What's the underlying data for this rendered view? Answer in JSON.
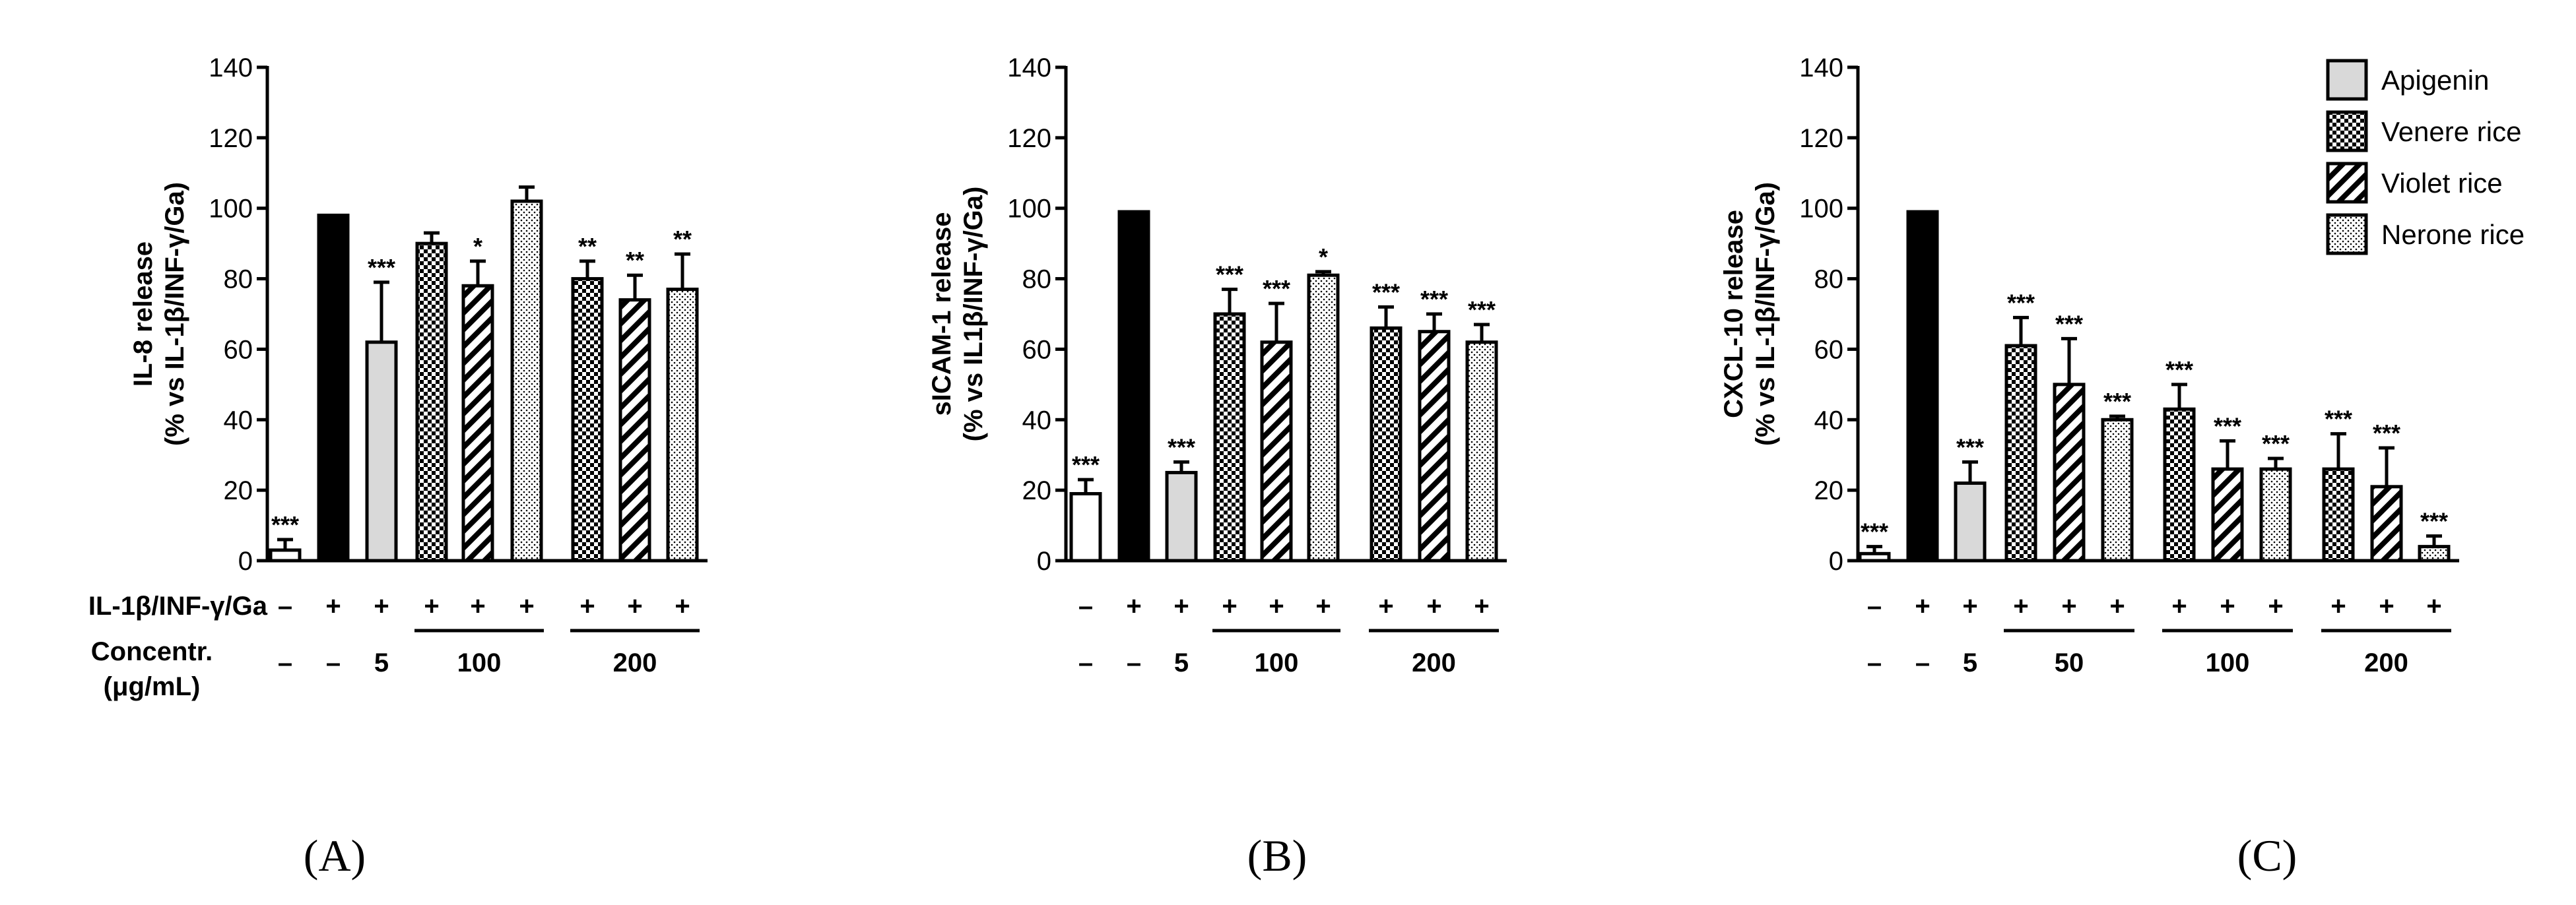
{
  "legend": [
    {
      "key": "apigenin",
      "label": "Apigenin",
      "pattern": "grey"
    },
    {
      "key": "venere",
      "label": "Venere rice",
      "pattern": "checker"
    },
    {
      "key": "violet",
      "label": "Violet rice",
      "pattern": "stripe"
    },
    {
      "key": "nerone",
      "label": "Nerone rice",
      "pattern": "dots"
    }
  ],
  "colors": {
    "bar_stroke": "#000000",
    "grey_fill": "#d9d9d9",
    "stim_fill": "#000000"
  },
  "chart_data": [
    {
      "panel": "(A)",
      "type": "bar",
      "ylabel": [
        "IL-8 release",
        "(% vs IL-1β/INF-γ/Ga)"
      ],
      "ylim": [
        0,
        140
      ],
      "yticks": [
        0,
        20,
        40,
        60,
        80,
        100,
        120,
        140
      ],
      "row_labels": [
        "IL-1β/INF-γ/Ga",
        "Concentr.",
        "(μg/mL)"
      ],
      "bars": [
        {
          "group": "control",
          "pattern": "white",
          "stim": "–",
          "conc": "–",
          "value": 3,
          "error": 3,
          "sig": "***"
        },
        {
          "group": "stimulated",
          "pattern": "black",
          "stim": "+",
          "conc": "–",
          "value": 98,
          "error": 0,
          "sig": ""
        },
        {
          "group": "apigenin",
          "pattern": "grey",
          "stim": "+",
          "conc": "5",
          "value": 62,
          "error": 17,
          "sig": "***"
        },
        {
          "group": "venere",
          "pattern": "checker",
          "stim": "+",
          "conc": "100",
          "value": 90,
          "error": 3,
          "sig": ""
        },
        {
          "group": "violet",
          "pattern": "stripe",
          "stim": "+",
          "conc": "100",
          "value": 78,
          "error": 7,
          "sig": "*"
        },
        {
          "group": "nerone",
          "pattern": "dots",
          "stim": "+",
          "conc": "100",
          "value": 102,
          "error": 4,
          "sig": ""
        },
        {
          "group": "venere",
          "pattern": "checker",
          "stim": "+",
          "conc": "200",
          "value": 80,
          "error": 5,
          "sig": "**"
        },
        {
          "group": "violet",
          "pattern": "stripe",
          "stim": "+",
          "conc": "200",
          "value": 74,
          "error": 7,
          "sig": "**"
        },
        {
          "group": "nerone",
          "pattern": "dots",
          "stim": "+",
          "conc": "200",
          "value": 77,
          "error": 10,
          "sig": "**"
        }
      ]
    },
    {
      "panel": "(B)",
      "type": "bar",
      "ylabel": [
        "sICAM-1 release",
        "(% vs IL1β/INF-γ/Ga)"
      ],
      "ylim": [
        0,
        140
      ],
      "yticks": [
        0,
        20,
        40,
        60,
        80,
        100,
        120,
        140
      ],
      "bars": [
        {
          "group": "control",
          "pattern": "white",
          "stim": "–",
          "conc": "–",
          "value": 19,
          "error": 4,
          "sig": "***"
        },
        {
          "group": "stimulated",
          "pattern": "black",
          "stim": "+",
          "conc": "–",
          "value": 99,
          "error": 0,
          "sig": ""
        },
        {
          "group": "apigenin",
          "pattern": "grey",
          "stim": "+",
          "conc": "5",
          "value": 25,
          "error": 3,
          "sig": "***"
        },
        {
          "group": "venere",
          "pattern": "checker",
          "stim": "+",
          "conc": "100",
          "value": 70,
          "error": 7,
          "sig": "***"
        },
        {
          "group": "violet",
          "pattern": "stripe",
          "stim": "+",
          "conc": "100",
          "value": 62,
          "error": 11,
          "sig": "***"
        },
        {
          "group": "nerone",
          "pattern": "dots",
          "stim": "+",
          "conc": "100",
          "value": 81,
          "error": 1,
          "sig": "*"
        },
        {
          "group": "venere",
          "pattern": "checker",
          "stim": "+",
          "conc": "200",
          "value": 66,
          "error": 6,
          "sig": "***"
        },
        {
          "group": "violet",
          "pattern": "stripe",
          "stim": "+",
          "conc": "200",
          "value": 65,
          "error": 5,
          "sig": "***"
        },
        {
          "group": "nerone",
          "pattern": "dots",
          "stim": "+",
          "conc": "200",
          "value": 62,
          "error": 5,
          "sig": "***"
        }
      ]
    },
    {
      "panel": "(C)",
      "type": "bar",
      "ylabel": [
        "CXCL-10 release",
        "(% vs IL-1β/INF-γ/Ga)"
      ],
      "ylim": [
        0,
        140
      ],
      "yticks": [
        0,
        20,
        40,
        60,
        80,
        100,
        120,
        140
      ],
      "bars": [
        {
          "group": "control",
          "pattern": "white",
          "stim": "–",
          "conc": "–",
          "value": 2,
          "error": 2,
          "sig": "***"
        },
        {
          "group": "stimulated",
          "pattern": "black",
          "stim": "+",
          "conc": "–",
          "value": 99,
          "error": 0,
          "sig": ""
        },
        {
          "group": "apigenin",
          "pattern": "grey",
          "stim": "+",
          "conc": "5",
          "value": 22,
          "error": 6,
          "sig": "***"
        },
        {
          "group": "venere",
          "pattern": "checker",
          "stim": "+",
          "conc": "50",
          "value": 61,
          "error": 8,
          "sig": "***"
        },
        {
          "group": "violet",
          "pattern": "stripe",
          "stim": "+",
          "conc": "50",
          "value": 50,
          "error": 13,
          "sig": "***"
        },
        {
          "group": "nerone",
          "pattern": "dots",
          "stim": "+",
          "conc": "50",
          "value": 40,
          "error": 1,
          "sig": "***"
        },
        {
          "group": "venere",
          "pattern": "checker",
          "stim": "+",
          "conc": "100",
          "value": 43,
          "error": 7,
          "sig": "***"
        },
        {
          "group": "violet",
          "pattern": "stripe",
          "stim": "+",
          "conc": "100",
          "value": 26,
          "error": 8,
          "sig": "***"
        },
        {
          "group": "nerone",
          "pattern": "dots",
          "stim": "+",
          "conc": "100",
          "value": 26,
          "error": 3,
          "sig": "***"
        },
        {
          "group": "venere",
          "pattern": "checker",
          "stim": "+",
          "conc": "200",
          "value": 26,
          "error": 10,
          "sig": "***"
        },
        {
          "group": "violet",
          "pattern": "stripe",
          "stim": "+",
          "conc": "200",
          "value": 21,
          "error": 11,
          "sig": "***"
        },
        {
          "group": "nerone",
          "pattern": "dots",
          "stim": "+",
          "conc": "200",
          "value": 4,
          "error": 3,
          "sig": "***"
        }
      ]
    }
  ]
}
